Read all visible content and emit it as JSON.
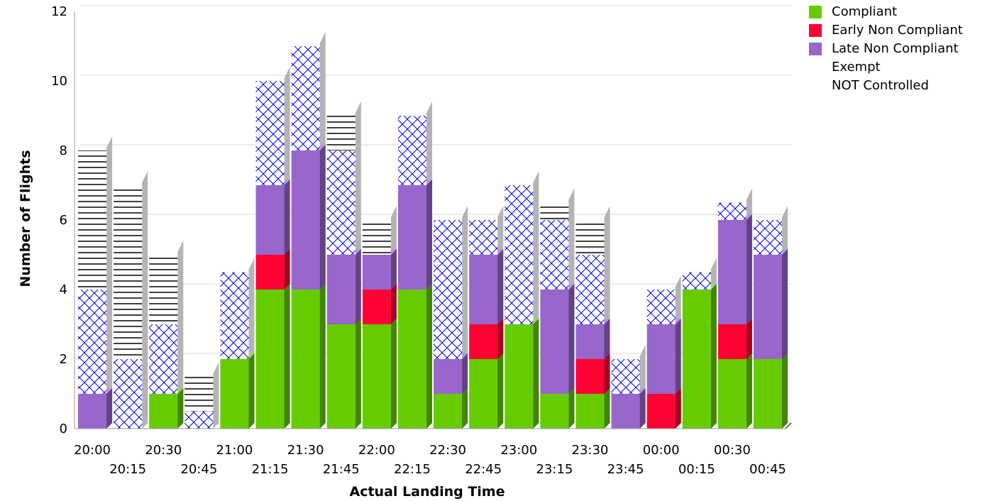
{
  "chart_data": {
    "type": "bar",
    "stacked": true,
    "title": "",
    "xlabel": "Actual Landing Time",
    "ylabel": "Number of Flights",
    "ylim": [
      0,
      12
    ],
    "yticks": [
      0,
      2,
      4,
      6,
      8,
      10,
      12
    ],
    "grid": true,
    "legend_position": "top-right",
    "categories": [
      "20:00",
      "20:15",
      "20:30",
      "20:45",
      "21:00",
      "21:15",
      "21:30",
      "21:45",
      "22:00",
      "22:15",
      "22:30",
      "22:45",
      "23:00",
      "23:15",
      "23:30",
      "23:45",
      "00:00",
      "00:15",
      "00:30",
      "00:45"
    ],
    "series": [
      {
        "name": "Compliant",
        "color": "#66cc00",
        "values": [
          0,
          0,
          1,
          0,
          2,
          4,
          4,
          3,
          3,
          4,
          1,
          2,
          3,
          1,
          1,
          0,
          0,
          4,
          2,
          2
        ]
      },
      {
        "name": "Early Non Compliant",
        "color": "#ff0033",
        "values": [
          0,
          0,
          0,
          0,
          0,
          1,
          0,
          0,
          1,
          0,
          0,
          1,
          0,
          0,
          1,
          0,
          1,
          0,
          1,
          0
        ]
      },
      {
        "name": "Late Non Compliant",
        "color": "#9966cc",
        "values": [
          1,
          0,
          0,
          0,
          0,
          2,
          4,
          2,
          1,
          3,
          1,
          2,
          0,
          3,
          1,
          1,
          2,
          0,
          3,
          3
        ]
      },
      {
        "name": "Exempt",
        "color": "#0000ff",
        "pattern": "crosshatch",
        "values": [
          3,
          2,
          2,
          0.5,
          2.5,
          3,
          3,
          3,
          0,
          2,
          4,
          1,
          4,
          2,
          2,
          1,
          1,
          0.5,
          0.5,
          1
        ]
      },
      {
        "name": "NOT Controlled",
        "color": "#000000",
        "pattern": "horizontal-lines",
        "values": [
          4,
          5,
          2,
          1,
          0,
          0,
          0,
          1,
          1,
          0,
          0,
          0,
          0,
          0.5,
          1,
          0,
          0,
          0,
          0,
          0
        ]
      }
    ]
  }
}
